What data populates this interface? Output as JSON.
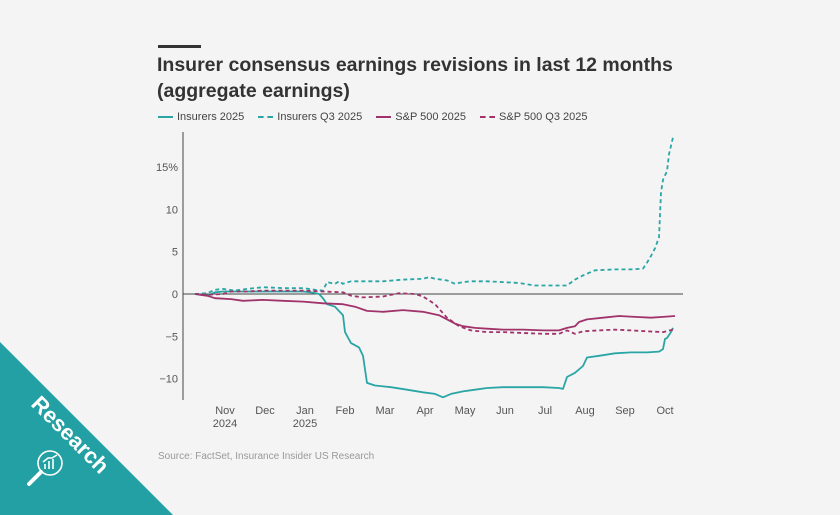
{
  "chart_data": {
    "type": "line",
    "title": "Insurer consensus earnings revisions in last 12 months (aggregate earnings)",
    "xlabel": "",
    "ylabel": "",
    "yunit": "%",
    "ylim": [
      -12.5,
      18.5
    ],
    "yticks": [
      15,
      10,
      5,
      0,
      -5,
      -10
    ],
    "ytick_labels": [
      "15%",
      "10",
      "5",
      "0",
      "−5",
      "−10"
    ],
    "xlim": [
      0,
      12.3
    ],
    "xticks": [
      {
        "pos": 1,
        "label": "Nov",
        "sub": "2024"
      },
      {
        "pos": 2,
        "label": "Dec",
        "sub": ""
      },
      {
        "pos": 3,
        "label": "Jan",
        "sub": "2025"
      },
      {
        "pos": 4,
        "label": "Feb",
        "sub": ""
      },
      {
        "pos": 5,
        "label": "Mar",
        "sub": ""
      },
      {
        "pos": 6,
        "label": "Apr",
        "sub": ""
      },
      {
        "pos": 7,
        "label": "May",
        "sub": ""
      },
      {
        "pos": 8,
        "label": "Jun",
        "sub": ""
      },
      {
        "pos": 9,
        "label": "Jul",
        "sub": ""
      },
      {
        "pos": 10,
        "label": "Aug",
        "sub": ""
      },
      {
        "pos": 11,
        "label": "Sep",
        "sub": ""
      },
      {
        "pos": 12,
        "label": "Oct",
        "sub": ""
      }
    ],
    "zero_line": true,
    "grid": false,
    "legend_position": "top-left",
    "series": [
      {
        "name": "Insurers 2025",
        "color": "#2aa5a5",
        "dash": false,
        "points": [
          [
            0.3,
            0
          ],
          [
            0.6,
            -0.2
          ],
          [
            0.8,
            0.2
          ],
          [
            1.0,
            0.3
          ],
          [
            1.5,
            0.3
          ],
          [
            2.0,
            0.3
          ],
          [
            2.5,
            0.3
          ],
          [
            3.0,
            0.3
          ],
          [
            3.2,
            0.2
          ],
          [
            3.4,
            0.0
          ],
          [
            3.5,
            -0.5
          ],
          [
            3.6,
            -1.2
          ],
          [
            3.8,
            -1.5
          ],
          [
            4.0,
            -2.5
          ],
          [
            4.05,
            -4.5
          ],
          [
            4.2,
            -5.8
          ],
          [
            4.4,
            -6.3
          ],
          [
            4.5,
            -7.3
          ],
          [
            4.6,
            -10.5
          ],
          [
            4.8,
            -10.8
          ],
          [
            5.2,
            -11.0
          ],
          [
            5.6,
            -11.3
          ],
          [
            6.0,
            -11.6
          ],
          [
            6.3,
            -11.8
          ],
          [
            6.5,
            -12.2
          ],
          [
            6.7,
            -11.8
          ],
          [
            7.0,
            -11.5
          ],
          [
            7.3,
            -11.3
          ],
          [
            7.6,
            -11.1
          ],
          [
            8.0,
            -11.0
          ],
          [
            8.5,
            -11.0
          ],
          [
            9.0,
            -11.0
          ],
          [
            9.4,
            -11.1
          ],
          [
            9.5,
            -11.2
          ],
          [
            9.6,
            -9.8
          ],
          [
            9.8,
            -9.3
          ],
          [
            10.0,
            -8.5
          ],
          [
            10.1,
            -7.5
          ],
          [
            10.4,
            -7.3
          ],
          [
            10.8,
            -7.0
          ],
          [
            11.2,
            -6.9
          ],
          [
            11.6,
            -6.9
          ],
          [
            11.9,
            -6.8
          ],
          [
            12.0,
            -6.5
          ],
          [
            12.05,
            -5.3
          ],
          [
            12.1,
            -5.2
          ],
          [
            12.2,
            -4.5
          ],
          [
            12.25,
            -4.0
          ]
        ]
      },
      {
        "name": "Insurers Q3 2025",
        "color": "#2aa5a5",
        "dash": true,
        "points": [
          [
            0.3,
            0
          ],
          [
            0.6,
            0.1
          ],
          [
            0.8,
            0.5
          ],
          [
            1.0,
            0.6
          ],
          [
            1.3,
            0.4
          ],
          [
            1.6,
            0.6
          ],
          [
            2.0,
            0.8
          ],
          [
            2.5,
            0.7
          ],
          [
            3.0,
            0.7
          ],
          [
            3.3,
            0.5
          ],
          [
            3.5,
            0.4
          ],
          [
            3.6,
            1.4
          ],
          [
            3.8,
            1.2
          ],
          [
            3.9,
            1.5
          ],
          [
            4.0,
            1.2
          ],
          [
            4.2,
            1.5
          ],
          [
            4.6,
            1.5
          ],
          [
            5.0,
            1.5
          ],
          [
            5.5,
            1.7
          ],
          [
            6.0,
            1.8
          ],
          [
            6.15,
            2.0
          ],
          [
            6.3,
            1.8
          ],
          [
            6.6,
            1.6
          ],
          [
            6.8,
            1.2
          ],
          [
            7.0,
            1.4
          ],
          [
            7.2,
            1.5
          ],
          [
            7.6,
            1.5
          ],
          [
            8.0,
            1.4
          ],
          [
            8.4,
            1.3
          ],
          [
            8.8,
            1.0
          ],
          [
            9.0,
            1.0
          ],
          [
            9.4,
            1.0
          ],
          [
            9.6,
            1.0
          ],
          [
            9.8,
            1.7
          ],
          [
            10.0,
            2.2
          ],
          [
            10.3,
            2.8
          ],
          [
            10.8,
            2.9
          ],
          [
            11.2,
            2.9
          ],
          [
            11.5,
            3.0
          ],
          [
            11.6,
            3.7
          ],
          [
            11.7,
            4.5
          ],
          [
            11.8,
            5.4
          ],
          [
            11.9,
            6.7
          ],
          [
            11.95,
            12.0
          ],
          [
            12.0,
            13.5
          ],
          [
            12.1,
            14.5
          ],
          [
            12.15,
            16.5
          ],
          [
            12.25,
            18.5
          ]
        ]
      },
      {
        "name": "S&P 500 2025",
        "color": "#a0336a",
        "dash": false,
        "points": [
          [
            0.3,
            0
          ],
          [
            0.6,
            -0.2
          ],
          [
            0.8,
            -0.5
          ],
          [
            1.2,
            -0.6
          ],
          [
            1.5,
            -0.8
          ],
          [
            2.0,
            -0.7
          ],
          [
            2.5,
            -0.8
          ],
          [
            3.0,
            -0.9
          ],
          [
            3.5,
            -1.1
          ],
          [
            4.0,
            -1.2
          ],
          [
            4.3,
            -1.5
          ],
          [
            4.6,
            -2.0
          ],
          [
            5.0,
            -2.1
          ],
          [
            5.5,
            -1.9
          ],
          [
            6.0,
            -2.1
          ],
          [
            6.4,
            -2.5
          ],
          [
            6.8,
            -3.5
          ],
          [
            7.0,
            -3.8
          ],
          [
            7.3,
            -4.0
          ],
          [
            7.6,
            -4.1
          ],
          [
            8.0,
            -4.2
          ],
          [
            8.5,
            -4.2
          ],
          [
            9.0,
            -4.3
          ],
          [
            9.4,
            -4.3
          ],
          [
            9.6,
            -4.0
          ],
          [
            9.8,
            -3.8
          ],
          [
            9.9,
            -3.3
          ],
          [
            10.1,
            -3.0
          ],
          [
            10.5,
            -2.8
          ],
          [
            10.9,
            -2.6
          ],
          [
            11.3,
            -2.7
          ],
          [
            11.7,
            -2.8
          ],
          [
            12.0,
            -2.7
          ],
          [
            12.3,
            -2.6
          ]
        ]
      },
      {
        "name": "S&P 500 Q3 2025",
        "color": "#a0336a",
        "dash": true,
        "points": [
          [
            0.3,
            0
          ],
          [
            0.6,
            -0.1
          ],
          [
            1.0,
            0.0
          ],
          [
            1.2,
            0.3
          ],
          [
            1.6,
            0.3
          ],
          [
            2.0,
            0.4
          ],
          [
            2.5,
            0.4
          ],
          [
            3.0,
            0.4
          ],
          [
            3.5,
            0.3
          ],
          [
            4.0,
            0.2
          ],
          [
            4.2,
            -0.2
          ],
          [
            4.5,
            -0.4
          ],
          [
            5.0,
            -0.3
          ],
          [
            5.4,
            0.1
          ],
          [
            5.8,
            0.0
          ],
          [
            6.0,
            -0.3
          ],
          [
            6.3,
            -1.2
          ],
          [
            6.6,
            -2.8
          ],
          [
            6.9,
            -3.8
          ],
          [
            7.2,
            -4.3
          ],
          [
            7.6,
            -4.5
          ],
          [
            8.0,
            -4.5
          ],
          [
            8.5,
            -4.6
          ],
          [
            9.0,
            -4.7
          ],
          [
            9.4,
            -4.7
          ],
          [
            9.6,
            -4.3
          ],
          [
            9.8,
            -4.7
          ],
          [
            10.0,
            -4.4
          ],
          [
            10.4,
            -4.3
          ],
          [
            10.8,
            -4.2
          ],
          [
            11.2,
            -4.3
          ],
          [
            11.6,
            -4.4
          ],
          [
            12.0,
            -4.5
          ],
          [
            12.25,
            -4.2
          ]
        ]
      }
    ]
  },
  "header": {
    "title": "Insurer consensus earnings revisions in last 12 months (aggregate earnings)"
  },
  "legend": [
    {
      "label": "Insurers 2025"
    },
    {
      "label": "Insurers Q3 2025"
    },
    {
      "label": "S&P 500 2025"
    },
    {
      "label": "S&P 500 Q3 2025"
    }
  ],
  "source": "Source: FactSet, Insurance Insider US Research",
  "badge": {
    "label": "Research",
    "color": "#22a0a3",
    "icon": "magnifier-chart-icon"
  }
}
